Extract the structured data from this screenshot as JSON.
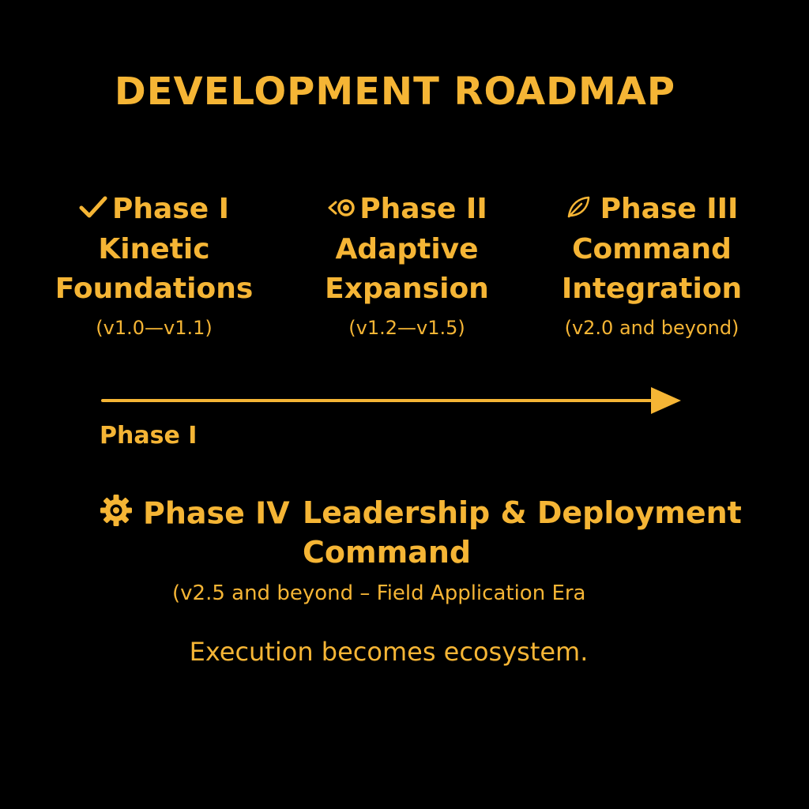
{
  "title": "DEVELOPMENT ROADMAP",
  "colors": {
    "background": "#000000",
    "accent": "#f5b535"
  },
  "phases": [
    {
      "icon": "check-icon",
      "label": "Phase I",
      "name_line1": "Kinetic",
      "name_line2": "Foundations",
      "version": "(v1.0—v1.1)"
    },
    {
      "icon": "eye-icon",
      "label": "Phase II",
      "name_line1": "Adaptive",
      "name_line2": "Expansion",
      "version": "(v1.2—v1.5)"
    },
    {
      "icon": "leaf-icon",
      "label": "Phase III",
      "name_line1": "Command",
      "name_line2": "Integration",
      "version": "(v2.0 and beyond)"
    }
  ],
  "timeline": {
    "label": "Phase I"
  },
  "phase4": {
    "icon": "gear-icon",
    "label": "Phase IV",
    "name_line1": "Leadership & Deployment",
    "name_line2": "Command",
    "version": "(v2.5 and beyond – Field Application Era"
  },
  "tagline": "Execution becomes ecosystem."
}
